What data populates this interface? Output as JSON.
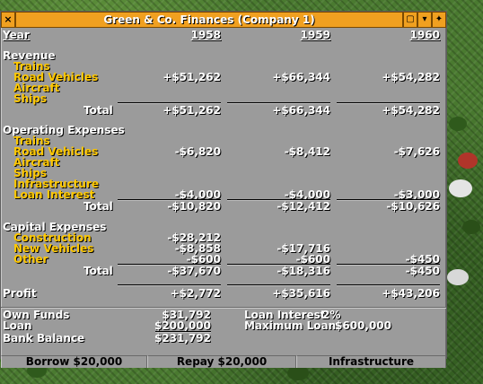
{
  "window": {
    "title": "Green & Co. Finances (Company 1)",
    "close_glyph": "×",
    "shade_glyph": "▢",
    "collapse_glyph": "▾",
    "pin_glyph": "✦"
  },
  "header": {
    "year_label": "Year",
    "years": [
      "1958",
      "1959",
      "1960"
    ]
  },
  "revenue": {
    "title": "Revenue",
    "items": [
      "Trains",
      "Road Vehicles",
      "Aircraft",
      "Ships"
    ],
    "road_vehicles": [
      "+$51,262",
      "+$66,344",
      "+$54,282"
    ],
    "total_label": "Total",
    "total": [
      "+$51,262",
      "+$66,344",
      "+$54,282"
    ]
  },
  "operating": {
    "title": "Operating Expenses",
    "items": [
      "Trains",
      "Road Vehicles",
      "Aircraft",
      "Ships",
      "Infrastructure",
      "Loan Interest"
    ],
    "road_vehicles": [
      "-$6,820",
      "-$8,412",
      "-$7,626"
    ],
    "loan_interest": [
      "-$4,000",
      "-$4,000",
      "-$3,000"
    ],
    "total_label": "Total",
    "total": [
      "-$10,820",
      "-$12,412",
      "-$10,626"
    ]
  },
  "capital": {
    "title": "Capital Expenses",
    "items": [
      "Construction",
      "New Vehicles",
      "Other"
    ],
    "construction": [
      "-$28,212",
      "",
      ""
    ],
    "new_vehicles": [
      "-$8,858",
      "-$17,716",
      ""
    ],
    "other": [
      "-$600",
      "-$600",
      "-$450"
    ],
    "total_label": "Total",
    "total": [
      "-$37,670",
      "-$18,316",
      "-$450"
    ]
  },
  "profit": {
    "label": "Profit",
    "values": [
      "+$2,772",
      "+$35,616",
      "+$43,206"
    ]
  },
  "summary": {
    "own_funds_label": "Own Funds",
    "own_funds": "$31,792",
    "loan_label": "Loan",
    "loan": "$200,000",
    "bank_balance_label": "Bank Balance",
    "bank_balance": "$231,792",
    "loan_interest_label": "Loan Interest:",
    "loan_interest": "2%",
    "max_loan_label": "Maximum Loan:",
    "max_loan": "$600,000"
  },
  "buttons": {
    "borrow": "Borrow $20,000",
    "repay": "Repay $20,000",
    "infrastructure": "Infrastructure"
  },
  "colors": {
    "window_bg": "#9b9b9b",
    "title_orange": "#f0a020",
    "label_yellow": "#ffc800"
  }
}
